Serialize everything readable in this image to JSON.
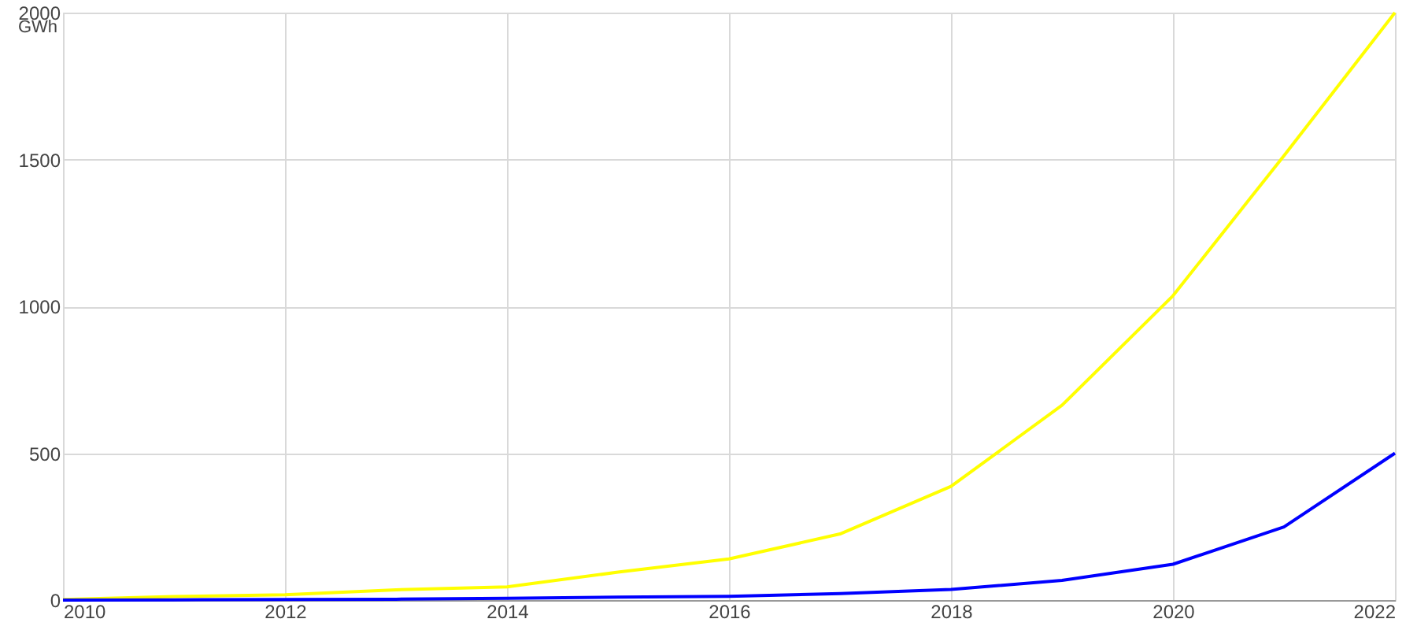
{
  "chart_data": {
    "type": "line",
    "ylabel": "GWh",
    "x": [
      2010,
      2011,
      2012,
      2013,
      2014,
      2015,
      2016,
      2017,
      2018,
      2019,
      2020,
      2021,
      2022
    ],
    "series": [
      {
        "color": "#ffff00",
        "values": [
          2,
          12,
          18,
          35,
          45,
          95,
          140,
          225,
          387,
          663,
          1036,
          1513,
          2000
        ]
      },
      {
        "color": "#0000ff",
        "values": [
          0,
          1,
          2,
          3,
          6,
          10,
          13,
          22,
          36,
          67,
          122,
          249,
          500
        ]
      }
    ],
    "xlim": [
      2010,
      2022
    ],
    "xticks": [
      2010,
      2012,
      2014,
      2016,
      2018,
      2020,
      2022
    ],
    "ylim": [
      0,
      2000
    ],
    "yticks": [
      0,
      500,
      1000,
      1500,
      2000
    ],
    "grid": true,
    "marker": "none",
    "line_style": "solid"
  }
}
